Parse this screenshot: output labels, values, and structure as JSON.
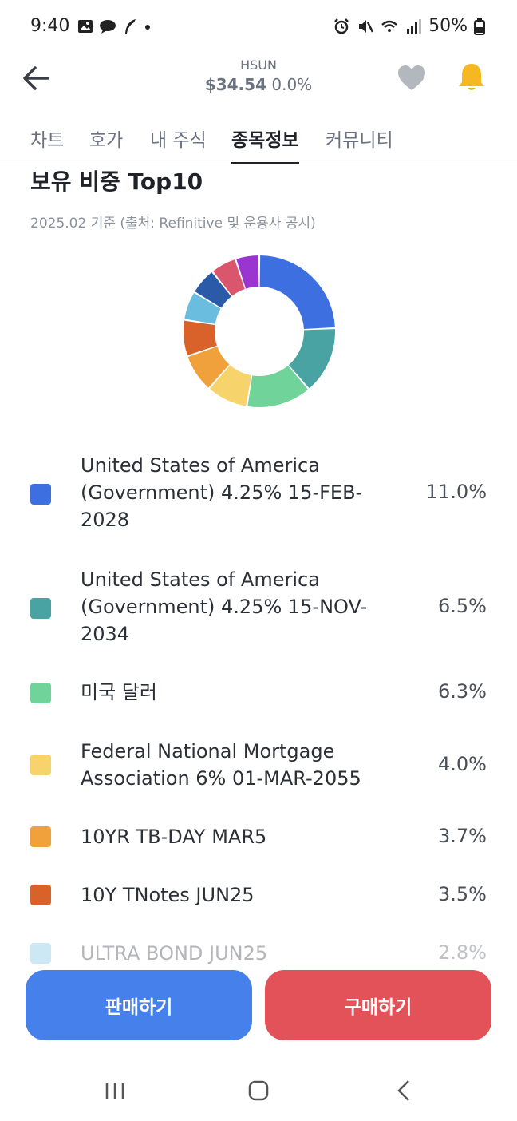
{
  "status": {
    "time": "9:40",
    "battery": "50%"
  },
  "header": {
    "ticker": "HSUN",
    "price": "$34.54",
    "change": "0.0%"
  },
  "tabs": [
    {
      "label": "차트",
      "active": false
    },
    {
      "label": "호가",
      "active": false
    },
    {
      "label": "내 주식",
      "active": false
    },
    {
      "label": "종목정보",
      "active": true
    },
    {
      "label": "커뮤니티",
      "active": false
    }
  ],
  "section": {
    "title": "보유 비중 Top10",
    "subtitle": "2025.02 기준 (출처: Refinitive 및 운용사 공시)"
  },
  "chart_data": {
    "type": "pie",
    "labels": [
      "United States of America (Government) 4.25% 15-FEB-2028",
      "United States of America (Government) 4.25% 15-NOV-2034",
      "미국 달러",
      "Federal National Mortgage Association 6% 01-MAR-2055",
      "10YR TB-DAY MAR5",
      "10Y TNotes JUN25",
      "ULTRA BOND JUN25",
      "",
      "",
      ""
    ],
    "values": [
      11.0,
      6.5,
      6.3,
      4.0,
      3.7,
      3.5,
      2.8,
      2.6,
      2.5,
      2.3
    ],
    "colors": [
      "#3d6fe0",
      "#4aa3a3",
      "#6fd39a",
      "#f7d36b",
      "#f0a13b",
      "#d8622a",
      "#6bbde0",
      "#2b5ba8",
      "#d9566d",
      "#9b35d0"
    ]
  },
  "holdings": [
    {
      "name": "United States of America (Government) 4.25% 15-FEB-2028",
      "pct": "11.0%",
      "color": "#3d6fe0"
    },
    {
      "name": "United States of America (Government) 4.25% 15-NOV-2034",
      "pct": "6.5%",
      "color": "#4aa3a3"
    },
    {
      "name": "미국 달러",
      "pct": "6.3%",
      "color": "#6fd39a"
    },
    {
      "name": "Federal National Mortgage Association 6% 01-MAR-2055",
      "pct": "4.0%",
      "color": "#f7d36b"
    },
    {
      "name": "10YR TB-DAY MAR5",
      "pct": "3.7%",
      "color": "#f0a13b"
    },
    {
      "name": "10Y TNotes JUN25",
      "pct": "3.5%",
      "color": "#d8622a"
    },
    {
      "name": "ULTRA BOND JUN25",
      "pct": "2.8%",
      "color": "#6bbde0"
    }
  ],
  "actions": {
    "sell_label": "판매하기",
    "buy_label": "구매하기"
  },
  "colors": {
    "sell": "#4680ea",
    "buy": "#e35159",
    "bell": "#f5b820",
    "heart": "#b3b8bf"
  }
}
